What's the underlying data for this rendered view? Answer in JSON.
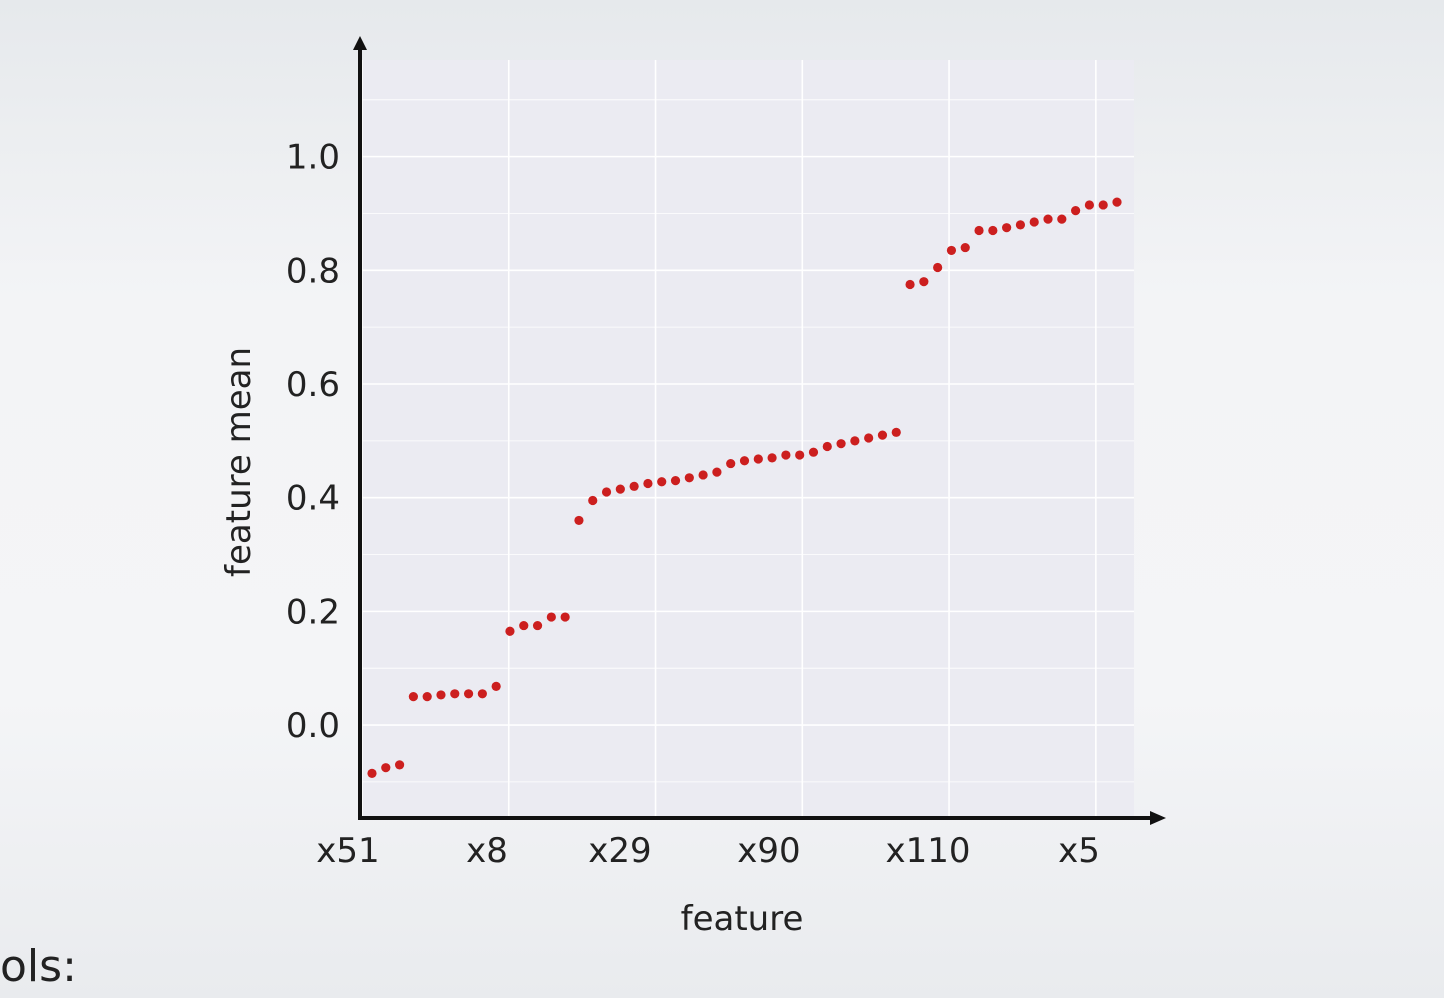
{
  "slide": {
    "bottom_text": "ols:"
  },
  "chart_data": {
    "type": "scatter",
    "xlabel": "feature",
    "ylabel": "feature mean",
    "x_tick_labels": [
      "x51",
      "x8",
      "x29",
      "x90",
      "x110",
      "x5"
    ],
    "y_ticks": [
      0.0,
      0.2,
      0.4,
      0.6,
      0.8,
      1.0
    ],
    "y_tick_labels": [
      "0.0",
      "0.2",
      "0.4",
      "0.6",
      "0.8",
      "1.0"
    ],
    "ylim": [
      -0.16,
      1.17
    ],
    "xlim": [
      0,
      55
    ],
    "grid": true,
    "marker_color": "#cc1f1f",
    "plot_background": "#ebebf2",
    "grid_color": "#ffffff",
    "points": [
      {
        "x": 1,
        "y": -0.085
      },
      {
        "x": 2,
        "y": -0.075
      },
      {
        "x": 3,
        "y": -0.07
      },
      {
        "x": 4,
        "y": 0.05
      },
      {
        "x": 5,
        "y": 0.05
      },
      {
        "x": 6,
        "y": 0.053
      },
      {
        "x": 7,
        "y": 0.055
      },
      {
        "x": 8,
        "y": 0.055
      },
      {
        "x": 9,
        "y": 0.055
      },
      {
        "x": 10,
        "y": 0.068
      },
      {
        "x": 11,
        "y": 0.165
      },
      {
        "x": 12,
        "y": 0.175
      },
      {
        "x": 13,
        "y": 0.175
      },
      {
        "x": 14,
        "y": 0.19
      },
      {
        "x": 15,
        "y": 0.19
      },
      {
        "x": 16,
        "y": 0.36
      },
      {
        "x": 17,
        "y": 0.395
      },
      {
        "x": 18,
        "y": 0.41
      },
      {
        "x": 19,
        "y": 0.415
      },
      {
        "x": 20,
        "y": 0.42
      },
      {
        "x": 21,
        "y": 0.425
      },
      {
        "x": 22,
        "y": 0.428
      },
      {
        "x": 23,
        "y": 0.43
      },
      {
        "x": 24,
        "y": 0.435
      },
      {
        "x": 25,
        "y": 0.44
      },
      {
        "x": 26,
        "y": 0.445
      },
      {
        "x": 27,
        "y": 0.46
      },
      {
        "x": 28,
        "y": 0.465
      },
      {
        "x": 29,
        "y": 0.468
      },
      {
        "x": 30,
        "y": 0.47
      },
      {
        "x": 31,
        "y": 0.475
      },
      {
        "x": 32,
        "y": 0.475
      },
      {
        "x": 33,
        "y": 0.48
      },
      {
        "x": 34,
        "y": 0.49
      },
      {
        "x": 35,
        "y": 0.495
      },
      {
        "x": 36,
        "y": 0.5
      },
      {
        "x": 37,
        "y": 0.505
      },
      {
        "x": 38,
        "y": 0.51
      },
      {
        "x": 39,
        "y": 0.515
      },
      {
        "x": 40,
        "y": 0.775
      },
      {
        "x": 41,
        "y": 0.78
      },
      {
        "x": 42,
        "y": 0.805
      },
      {
        "x": 43,
        "y": 0.835
      },
      {
        "x": 44,
        "y": 0.84
      },
      {
        "x": 45,
        "y": 0.87
      },
      {
        "x": 46,
        "y": 0.87
      },
      {
        "x": 47,
        "y": 0.875
      },
      {
        "x": 48,
        "y": 0.88
      },
      {
        "x": 49,
        "y": 0.885
      },
      {
        "x": 50,
        "y": 0.89
      },
      {
        "x": 51,
        "y": 0.89
      },
      {
        "x": 52,
        "y": 0.905
      },
      {
        "x": 53,
        "y": 0.915
      },
      {
        "x": 54,
        "y": 0.915
      },
      {
        "x": 55,
        "y": 0.92
      }
    ]
  }
}
